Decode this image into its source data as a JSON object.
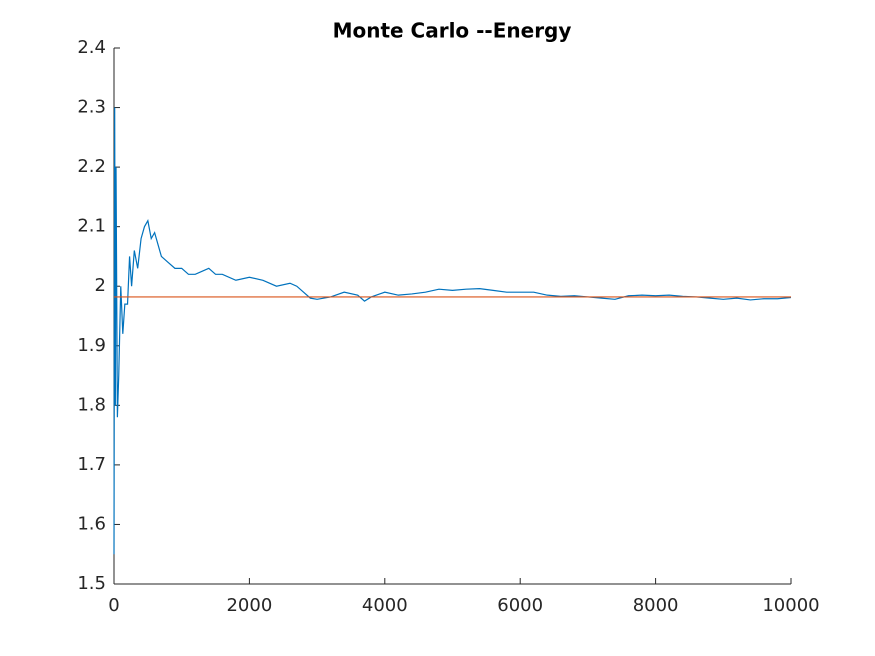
{
  "chart_data": {
    "type": "line",
    "title": "Monte Carlo --Energy",
    "xlim": [
      0,
      10000
    ],
    "xticks": [
      0,
      2000,
      4000,
      6000,
      8000,
      10000
    ],
    "ylim": [
      1.5,
      2.4
    ],
    "yticks": [
      1.5,
      1.6,
      1.7,
      1.8,
      1.9,
      2,
      2.1,
      2.2,
      2.3,
      2.4
    ],
    "series": [
      {
        "color": "#0072BD",
        "x": [
          0,
          10,
          20,
          30,
          50,
          70,
          100,
          130,
          160,
          200,
          230,
          260,
          300,
          350,
          400,
          450,
          500,
          550,
          600,
          650,
          700,
          800,
          900,
          1000,
          1100,
          1200,
          1300,
          1400,
          1500,
          1600,
          1800,
          2000,
          2200,
          2400,
          2600,
          2700,
          2800,
          2900,
          3000,
          3200,
          3400,
          3600,
          3700,
          3800,
          4000,
          4200,
          4400,
          4600,
          4800,
          5000,
          5200,
          5400,
          5600,
          5800,
          6000,
          6200,
          6400,
          6600,
          6800,
          7000,
          7200,
          7400,
          7600,
          7800,
          8000,
          8200,
          8400,
          8600,
          8800,
          9000,
          9200,
          9400,
          9600,
          9800,
          10000
        ],
        "values": [
          1.55,
          2.3,
          1.8,
          2.2,
          1.78,
          1.85,
          2.0,
          1.92,
          1.97,
          1.97,
          2.05,
          2.0,
          2.06,
          2.03,
          2.08,
          2.1,
          2.11,
          2.08,
          2.09,
          2.07,
          2.05,
          2.04,
          2.03,
          2.03,
          2.02,
          2.02,
          2.025,
          2.03,
          2.02,
          2.02,
          2.01,
          2.015,
          2.01,
          2.0,
          2.005,
          2.0,
          1.99,
          1.98,
          1.978,
          1.982,
          1.99,
          1.985,
          1.975,
          1.982,
          1.99,
          1.985,
          1.987,
          1.99,
          1.995,
          1.993,
          1.995,
          1.996,
          1.993,
          1.99,
          1.99,
          1.99,
          1.985,
          1.983,
          1.984,
          1.982,
          1.98,
          1.978,
          1.984,
          1.985,
          1.984,
          1.985,
          1.983,
          1.982,
          1.98,
          1.978,
          1.98,
          1.977,
          1.979,
          1.979,
          1.981
        ]
      },
      {
        "color": "#D95319",
        "x": [
          0,
          10000
        ],
        "values": [
          1.982,
          1.982
        ]
      }
    ]
  }
}
